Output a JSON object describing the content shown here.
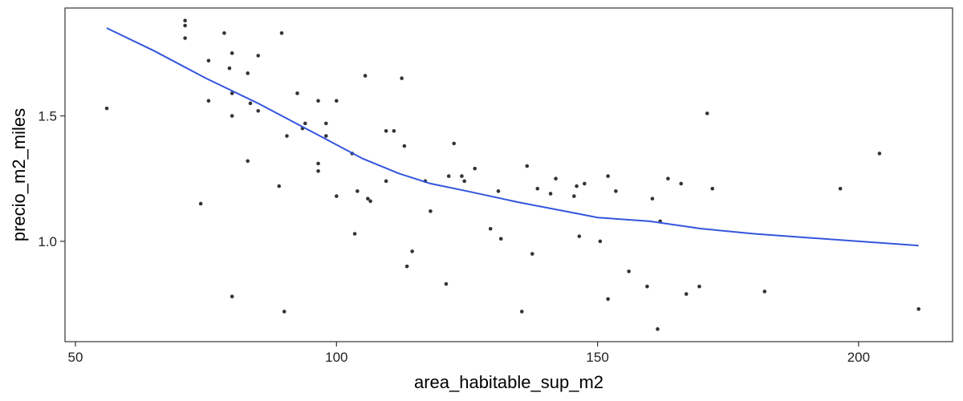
{
  "chart_data": {
    "type": "scatter",
    "title": "",
    "xlabel": "area_habitable_sup_m2",
    "ylabel": "precio_m2_miles",
    "xlim": [
      48,
      218
    ],
    "ylim": [
      0.6,
      1.93
    ],
    "x_ticks": [
      50,
      100,
      150,
      200
    ],
    "x_tick_labels": [
      "50",
      "100",
      "150",
      "200"
    ],
    "y_ticks": [
      1.0,
      1.5
    ],
    "y_tick_labels": [
      "1.0",
      "1.5"
    ],
    "grid": false,
    "legend": "none",
    "colors": {
      "points": "#333333",
      "smooth": "#3355dd",
      "frame": "#333333"
    },
    "points": [
      {
        "x": 56,
        "y": 1.53
      },
      {
        "x": 71,
        "y": 1.88
      },
      {
        "x": 71,
        "y": 1.86
      },
      {
        "x": 71,
        "y": 1.81
      },
      {
        "x": 74,
        "y": 1.15
      },
      {
        "x": 75.5,
        "y": 1.72
      },
      {
        "x": 75.5,
        "y": 1.56
      },
      {
        "x": 78.5,
        "y": 1.83
      },
      {
        "x": 79.5,
        "y": 1.69
      },
      {
        "x": 80,
        "y": 1.75
      },
      {
        "x": 80,
        "y": 1.59
      },
      {
        "x": 80,
        "y": 1.5
      },
      {
        "x": 80,
        "y": 0.78
      },
      {
        "x": 83,
        "y": 1.67
      },
      {
        "x": 83,
        "y": 1.32
      },
      {
        "x": 83.5,
        "y": 1.55
      },
      {
        "x": 85,
        "y": 1.74
      },
      {
        "x": 85,
        "y": 1.52
      },
      {
        "x": 89,
        "y": 1.22
      },
      {
        "x": 89.5,
        "y": 1.83
      },
      {
        "x": 90,
        "y": 0.72
      },
      {
        "x": 90.5,
        "y": 1.42
      },
      {
        "x": 92.5,
        "y": 1.59
      },
      {
        "x": 93.5,
        "y": 1.45
      },
      {
        "x": 94,
        "y": 1.47
      },
      {
        "x": 96.5,
        "y": 1.56
      },
      {
        "x": 96.5,
        "y": 1.31
      },
      {
        "x": 96.5,
        "y": 1.28
      },
      {
        "x": 98,
        "y": 1.47
      },
      {
        "x": 98,
        "y": 1.42
      },
      {
        "x": 100,
        "y": 1.56
      },
      {
        "x": 100,
        "y": 1.18
      },
      {
        "x": 103,
        "y": 1.35
      },
      {
        "x": 103.5,
        "y": 1.03
      },
      {
        "x": 104,
        "y": 1.2
      },
      {
        "x": 105.5,
        "y": 1.66
      },
      {
        "x": 106,
        "y": 1.17
      },
      {
        "x": 106.5,
        "y": 1.16
      },
      {
        "x": 109.5,
        "y": 1.44
      },
      {
        "x": 109.5,
        "y": 1.24
      },
      {
        "x": 111,
        "y": 1.44
      },
      {
        "x": 112.5,
        "y": 1.65
      },
      {
        "x": 113,
        "y": 1.38
      },
      {
        "x": 113.5,
        "y": 0.9
      },
      {
        "x": 114.5,
        "y": 0.96
      },
      {
        "x": 117,
        "y": 1.24
      },
      {
        "x": 118,
        "y": 1.12
      },
      {
        "x": 121,
        "y": 0.83
      },
      {
        "x": 121.5,
        "y": 1.26
      },
      {
        "x": 122.5,
        "y": 1.39
      },
      {
        "x": 124,
        "y": 1.26
      },
      {
        "x": 124.5,
        "y": 1.24
      },
      {
        "x": 126.5,
        "y": 1.29
      },
      {
        "x": 129.5,
        "y": 1.05
      },
      {
        "x": 131,
        "y": 1.2
      },
      {
        "x": 131.5,
        "y": 1.01
      },
      {
        "x": 135.5,
        "y": 0.72
      },
      {
        "x": 136.5,
        "y": 1.3
      },
      {
        "x": 137.5,
        "y": 0.95
      },
      {
        "x": 138.5,
        "y": 1.21
      },
      {
        "x": 141,
        "y": 1.19
      },
      {
        "x": 142,
        "y": 1.25
      },
      {
        "x": 145.5,
        "y": 1.18
      },
      {
        "x": 146,
        "y": 1.22
      },
      {
        "x": 146.5,
        "y": 1.02
      },
      {
        "x": 147.5,
        "y": 1.23
      },
      {
        "x": 150.5,
        "y": 1.0
      },
      {
        "x": 152,
        "y": 1.26
      },
      {
        "x": 152,
        "y": 0.77
      },
      {
        "x": 153.5,
        "y": 1.2
      },
      {
        "x": 156,
        "y": 0.88
      },
      {
        "x": 159.5,
        "y": 0.82
      },
      {
        "x": 160.5,
        "y": 1.17
      },
      {
        "x": 161.5,
        "y": 0.65
      },
      {
        "x": 162,
        "y": 1.08
      },
      {
        "x": 163.5,
        "y": 1.25
      },
      {
        "x": 166,
        "y": 1.23
      },
      {
        "x": 167,
        "y": 0.79
      },
      {
        "x": 169.5,
        "y": 0.82
      },
      {
        "x": 171,
        "y": 1.51
      },
      {
        "x": 172,
        "y": 1.21
      },
      {
        "x": 182,
        "y": 0.8
      },
      {
        "x": 196.5,
        "y": 1.21
      },
      {
        "x": 204,
        "y": 1.35
      },
      {
        "x": 211.5,
        "y": 0.73
      }
    ],
    "smooth": [
      {
        "x": 56,
        "y": 1.85
      },
      {
        "x": 65,
        "y": 1.76
      },
      {
        "x": 75,
        "y": 1.65
      },
      {
        "x": 85,
        "y": 1.55
      },
      {
        "x": 95,
        "y": 1.44
      },
      {
        "x": 105,
        "y": 1.33
      },
      {
        "x": 112,
        "y": 1.27
      },
      {
        "x": 118,
        "y": 1.23
      },
      {
        "x": 125,
        "y": 1.2
      },
      {
        "x": 135,
        "y": 1.155
      },
      {
        "x": 145,
        "y": 1.115
      },
      {
        "x": 150,
        "y": 1.095
      },
      {
        "x": 160,
        "y": 1.08
      },
      {
        "x": 170,
        "y": 1.05
      },
      {
        "x": 180,
        "y": 1.03
      },
      {
        "x": 190,
        "y": 1.015
      },
      {
        "x": 200,
        "y": 1.0
      },
      {
        "x": 211.5,
        "y": 0.983
      }
    ]
  }
}
